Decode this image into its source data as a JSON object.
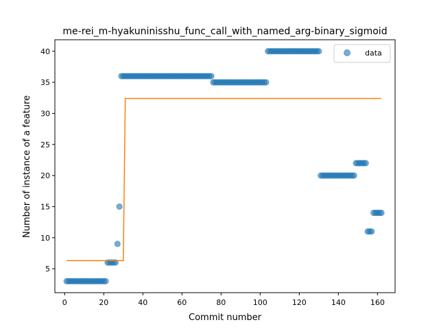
{
  "chart_data": {
    "type": "scatter",
    "title": "me-rei_m-hyakuninisshu_func_call_with_named_arg-binary_sigmoid",
    "xlabel": "Commit number",
    "ylabel": "Number of instance of a feature",
    "xlim": [
      -5,
      169
    ],
    "ylim": [
      1.15,
      41.85
    ],
    "xticks": [
      0,
      20,
      40,
      60,
      80,
      100,
      120,
      140,
      160
    ],
    "yticks": [
      5,
      10,
      15,
      20,
      25,
      30,
      35,
      40
    ],
    "grid": false,
    "legend": {
      "placement": "top-right",
      "entries": [
        "data"
      ]
    },
    "colors": {
      "data": "#1f77b4",
      "fit": "#ff7f0e"
    },
    "series": [
      {
        "name": "data",
        "kind": "scatter",
        "segments": [
          {
            "x_from": 1,
            "x_to": 21,
            "y": 3
          },
          {
            "x_from": 22,
            "x_to": 26,
            "y": 6
          },
          {
            "x_from": 27,
            "x_to": 27,
            "y": 9
          },
          {
            "x_from": 28,
            "x_to": 28,
            "y": 15
          },
          {
            "x_from": 29,
            "x_to": 75,
            "y": 36
          },
          {
            "x_from": 76,
            "x_to": 103,
            "y": 35
          },
          {
            "x_from": 104,
            "x_to": 130,
            "y": 40
          },
          {
            "x_from": 131,
            "x_to": 148,
            "y": 20
          },
          {
            "x_from": 149,
            "x_to": 154,
            "y": 22
          },
          {
            "x_from": 155,
            "x_to": 157,
            "y": 11
          },
          {
            "x_from": 158,
            "x_to": 162,
            "y": 14
          }
        ]
      },
      {
        "kind": "line",
        "points": [
          [
            1,
            6.3
          ],
          [
            30,
            6.3
          ],
          [
            31,
            32.4
          ],
          [
            162,
            32.4
          ]
        ]
      }
    ]
  }
}
